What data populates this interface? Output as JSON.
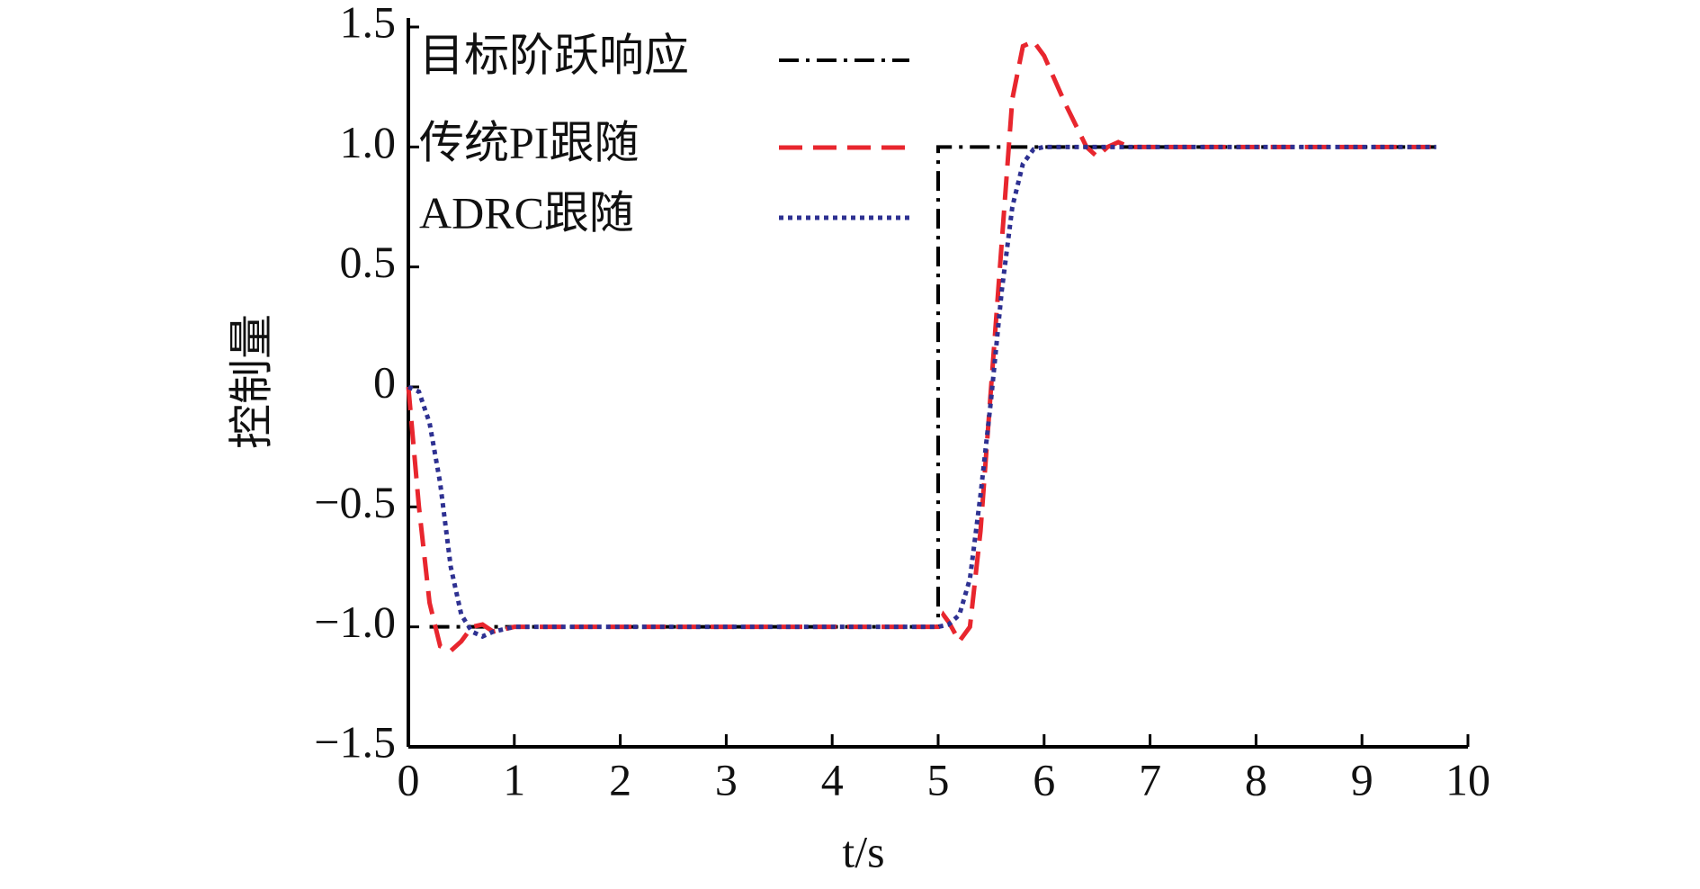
{
  "chart_data": {
    "type": "line",
    "xlabel": "t/s",
    "ylabel": "控制量",
    "xlim": [
      0,
      10
    ],
    "ylim": [
      -1.5,
      1.5
    ],
    "xticks": [
      0,
      1,
      2,
      3,
      4,
      5,
      6,
      7,
      8,
      9,
      10
    ],
    "yticks": [
      {
        "value": -1.5,
        "label": "−1.5"
      },
      {
        "value": -1,
        "label": "−1.0"
      },
      {
        "value": -0.5,
        "label": "−0.5"
      },
      0,
      0.5,
      {
        "value": 1,
        "label": "1.0"
      },
      1.5
    ],
    "legend": "upper-left",
    "series": [
      {
        "name": "目标阶跃响应",
        "color": "#000000",
        "dash": "dashdot",
        "x": [
          0.2,
          5,
          5,
          9.7
        ],
        "values": [
          -1,
          -1,
          1,
          1
        ]
      },
      {
        "name": "传统PI跟随",
        "color": "#e8262e",
        "dash": "dashed",
        "x": [
          0,
          0.1,
          0.2,
          0.3,
          0.4,
          0.5,
          0.6,
          0.7,
          0.8,
          0.9,
          1.0,
          5.0,
          5.05,
          5.1,
          5.2,
          5.3,
          5.4,
          5.5,
          5.6,
          5.7,
          5.8,
          5.9,
          6.0,
          6.2,
          6.4,
          6.5,
          6.6,
          6.7,
          6.8,
          7.0,
          9.7
        ],
        "values": [
          0,
          -0.5,
          -0.9,
          -1.08,
          -1.1,
          -1.06,
          -1.0,
          -0.99,
          -1.02,
          -1.01,
          -1.0,
          -1.0,
          -0.95,
          -0.98,
          -1.06,
          -1.0,
          -0.6,
          0.0,
          0.6,
          1.2,
          1.42,
          1.44,
          1.38,
          1.18,
          1.0,
          0.96,
          1.0,
          1.02,
          1.0,
          1.0,
          1.0
        ]
      },
      {
        "name": "ADRC跟随",
        "color": "#2e3192",
        "dash": "dotted",
        "x": [
          0,
          0.1,
          0.2,
          0.3,
          0.4,
          0.5,
          0.6,
          0.7,
          0.8,
          1.0,
          5.0,
          5.1,
          5.2,
          5.3,
          5.4,
          5.5,
          5.6,
          5.7,
          5.8,
          5.9,
          6.0,
          9.7
        ],
        "values": [
          0,
          -0.02,
          -0.15,
          -0.4,
          -0.75,
          -0.95,
          -1.02,
          -1.04,
          -1.02,
          -1.0,
          -1.0,
          -0.99,
          -0.95,
          -0.8,
          -0.45,
          -0.05,
          0.4,
          0.75,
          0.93,
          0.99,
          1.0,
          1.0
        ]
      }
    ]
  }
}
